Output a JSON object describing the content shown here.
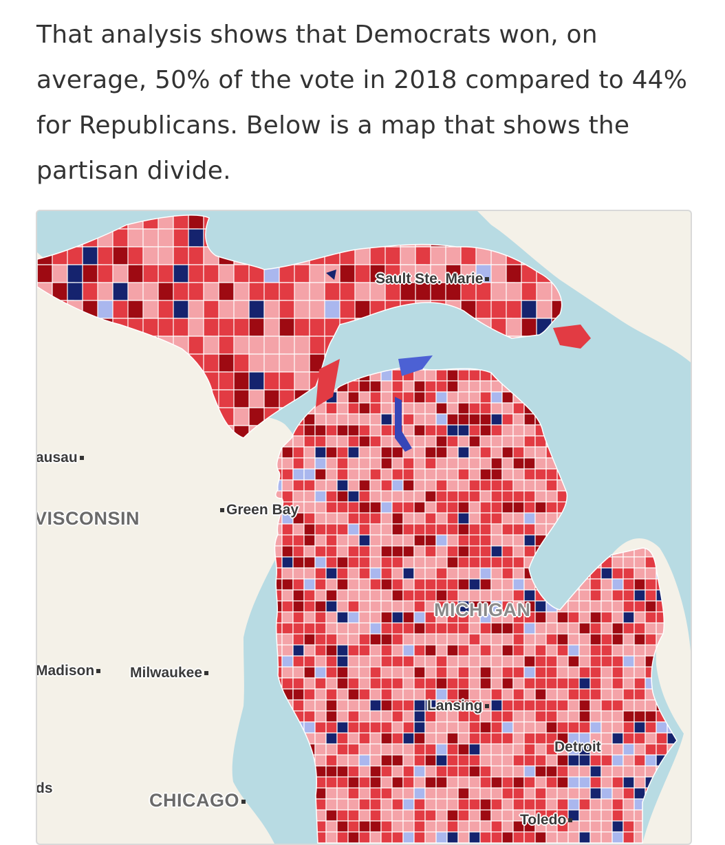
{
  "article": {
    "paragraph": "That analysis shows that Democrats won, on average, 50% of the vote in 2018 compared to 44% for Republicans. Below is a map that shows the partisan divide."
  },
  "map": {
    "labels": {
      "sault_ste_marie": "Sault Ste. Marie",
      "wausau": "ausau",
      "wisconsin": "VISCONSIN",
      "green_bay": "Green Bay",
      "michigan": "MICHIGAN",
      "madison": "Madison",
      "milwaukee": "Milwaukee",
      "lansing": "Lansing",
      "detroit": "Detroit",
      "grand_rapids_partial": "ds",
      "chicago": "CHICAGO",
      "toledo": "Toledo"
    },
    "colors": {
      "water": "#b8dbe3",
      "land": "#f4f1e8",
      "republican_strong": "#9e0a12",
      "republican": "#e23b43",
      "republican_lean": "#f4a3a8",
      "democrat_lean": "#aab7ee",
      "democrat": "#4c61d4",
      "democrat_strong": "#15236e"
    }
  }
}
